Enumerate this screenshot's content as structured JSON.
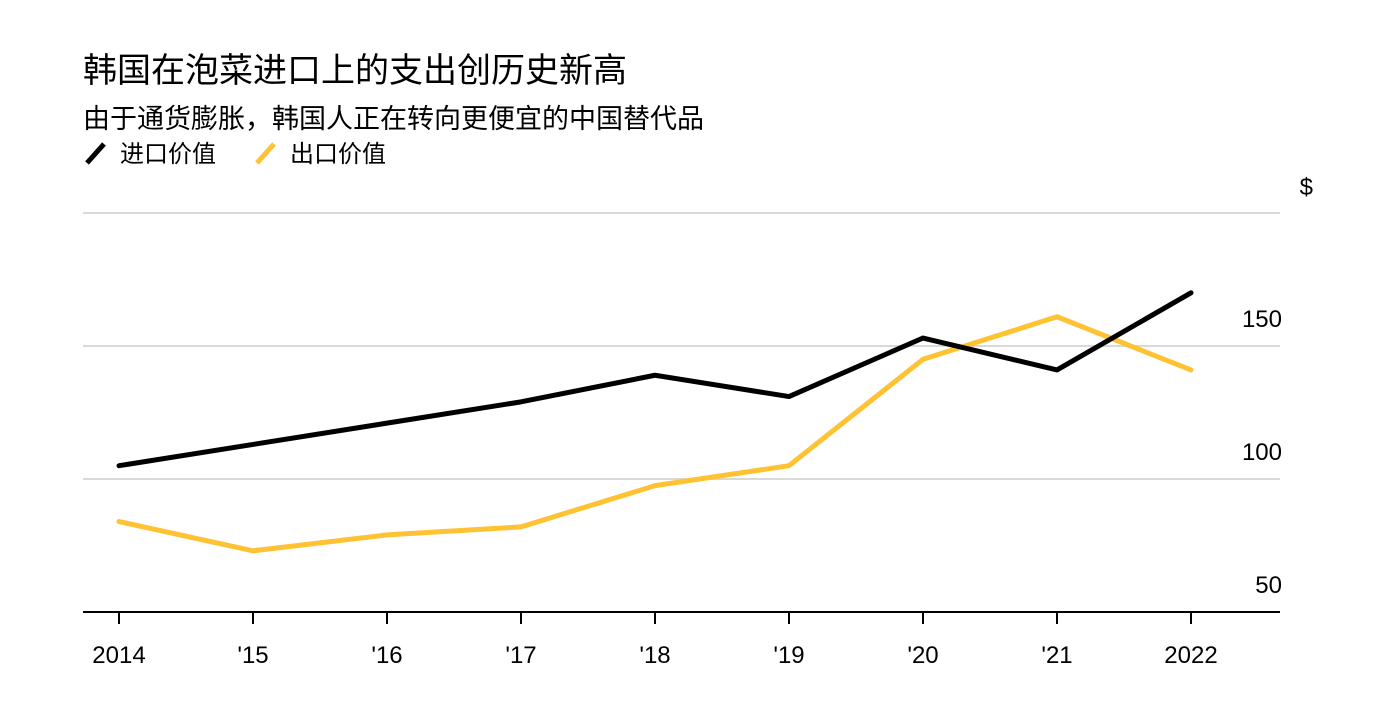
{
  "chart_data": {
    "type": "line",
    "title": "韩国在泡菜进口上的支出创历史新高",
    "subtitle": "由于通货膨胀，韩国人正在转向更便宜的中国替代品",
    "ylabel": "$",
    "categories": [
      "2014",
      "'15",
      "'16",
      "'17",
      "'18",
      "'19",
      "'20",
      "'21",
      "2022"
    ],
    "ylim": [
      50,
      200
    ],
    "yticks": [
      50,
      100,
      150
    ],
    "ytick_labels": [
      "50",
      "100",
      "150"
    ],
    "grid": true,
    "legend_position": "top-left",
    "series": [
      {
        "name": "进口价值",
        "color": "#000000",
        "values": [
          105,
          113,
          121,
          129,
          139,
          131,
          153,
          141,
          170
        ]
      },
      {
        "name": "出口价值",
        "color": "#FEC232",
        "values": [
          84,
          73,
          79,
          82,
          97.5,
          105,
          145,
          161,
          141
        ]
      }
    ]
  }
}
